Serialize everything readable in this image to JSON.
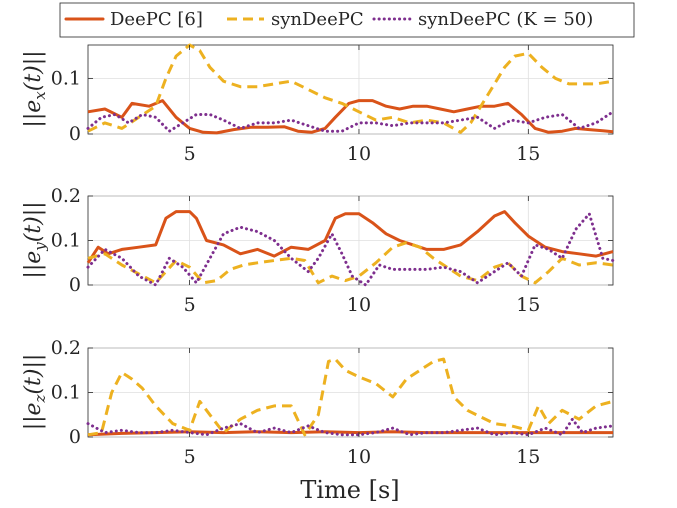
{
  "colors": {
    "deepc": "#D95319",
    "syndeepc": "#EDB120",
    "syndeepc_k50": "#7E2F8E"
  },
  "chart_data": [
    {
      "type": "line",
      "ylabel": "||e_x(t)||",
      "ylabel_parts": [
        "||e",
        "x",
        "(t)||"
      ],
      "xlim": [
        2,
        17.5
      ],
      "ylim": [
        0,
        0.16
      ],
      "xticks": [
        5,
        10,
        15
      ],
      "yticks": [
        0,
        0.1
      ],
      "ytick_labels": [
        "0",
        "0.1"
      ],
      "xtick_labels": [
        "5",
        "10",
        "15"
      ],
      "grid": true,
      "series": [
        {
          "name": "DeePC [6]",
          "color": "#D95319",
          "style": "solid",
          "x": [
            2.0,
            2.5,
            3.0,
            3.3,
            3.8,
            4.2,
            4.6,
            5.0,
            5.4,
            5.8,
            6.3,
            6.8,
            7.3,
            7.8,
            8.2,
            8.6,
            9.0,
            9.3,
            9.7,
            10.0,
            10.4,
            10.8,
            11.2,
            11.6,
            12.0,
            12.4,
            12.8,
            13.2,
            13.6,
            14.0,
            14.4,
            14.8,
            15.2,
            15.6,
            16.0,
            16.4,
            16.8,
            17.2,
            17.5
          ],
          "y": [
            0.04,
            0.045,
            0.03,
            0.055,
            0.05,
            0.06,
            0.03,
            0.01,
            0.003,
            0.002,
            0.008,
            0.012,
            0.012,
            0.013,
            0.005,
            0.003,
            0.01,
            0.03,
            0.055,
            0.06,
            0.06,
            0.05,
            0.045,
            0.05,
            0.05,
            0.045,
            0.04,
            0.045,
            0.05,
            0.05,
            0.055,
            0.035,
            0.01,
            0.003,
            0.005,
            0.01,
            0.008,
            0.006,
            0.004
          ]
        },
        {
          "name": "synDeePC",
          "color": "#EDB120",
          "style": "dash",
          "x": [
            2.0,
            2.5,
            3.0,
            3.5,
            4.0,
            4.3,
            4.6,
            5.0,
            5.3,
            5.6,
            6.0,
            6.5,
            7.0,
            7.5,
            8.0,
            8.5,
            9.0,
            9.5,
            10.0,
            10.5,
            11.0,
            11.5,
            12.0,
            12.5,
            13.0,
            13.3,
            13.7,
            14.0,
            14.3,
            14.6,
            15.0,
            15.4,
            15.8,
            16.2,
            16.6,
            17.0,
            17.5
          ],
          "y": [
            0.005,
            0.02,
            0.01,
            0.03,
            0.05,
            0.1,
            0.14,
            0.16,
            0.15,
            0.12,
            0.095,
            0.085,
            0.085,
            0.09,
            0.095,
            0.08,
            0.065,
            0.055,
            0.04,
            0.025,
            0.03,
            0.02,
            0.025,
            0.02,
            0.003,
            0.02,
            0.06,
            0.09,
            0.12,
            0.14,
            0.145,
            0.12,
            0.1,
            0.09,
            0.09,
            0.09,
            0.095
          ]
        },
        {
          "name": "synDeePC (K = 50)",
          "color": "#7E2F8E",
          "style": "dot",
          "x": [
            2.0,
            2.4,
            2.8,
            3.2,
            3.6,
            4.0,
            4.4,
            4.8,
            5.2,
            5.6,
            6.0,
            6.5,
            7.0,
            7.5,
            8.0,
            8.5,
            9.0,
            9.5,
            10.0,
            10.5,
            11.0,
            11.5,
            12.0,
            12.5,
            13.0,
            13.5,
            14.0,
            14.5,
            15.0,
            15.5,
            16.0,
            16.5,
            17.0,
            17.5
          ],
          "y": [
            0.01,
            0.03,
            0.035,
            0.02,
            0.035,
            0.03,
            0.005,
            0.02,
            0.035,
            0.035,
            0.025,
            0.01,
            0.02,
            0.02,
            0.025,
            0.015,
            0.005,
            0.005,
            0.02,
            0.02,
            0.015,
            0.02,
            0.02,
            0.02,
            0.025,
            0.03,
            0.01,
            0.025,
            0.02,
            0.03,
            0.035,
            0.01,
            0.02,
            0.04
          ]
        }
      ]
    },
    {
      "type": "line",
      "ylabel": "||e_y(t)||",
      "ylabel_parts": [
        "||e",
        "y",
        "(t)||"
      ],
      "xlim": [
        2,
        17.5
      ],
      "ylim": [
        0,
        0.2
      ],
      "xticks": [
        5,
        10,
        15
      ],
      "yticks": [
        0,
        0.1,
        0.2
      ],
      "ytick_labels": [
        "0",
        "0.1",
        "0.2"
      ],
      "xtick_labels": [
        "5",
        "10",
        "15"
      ],
      "grid": true,
      "series": [
        {
          "name": "DeePC [6]",
          "color": "#D95319",
          "style": "solid",
          "x": [
            2.0,
            2.3,
            2.6,
            3.0,
            3.5,
            4.0,
            4.3,
            4.6,
            5.0,
            5.2,
            5.5,
            6.0,
            6.5,
            7.0,
            7.5,
            8.0,
            8.5,
            9.0,
            9.3,
            9.6,
            10.0,
            10.4,
            10.8,
            11.2,
            11.6,
            12.0,
            12.5,
            13.0,
            13.5,
            14.0,
            14.3,
            14.6,
            15.0,
            15.5,
            16.0,
            16.5,
            17.0,
            17.5
          ],
          "y": [
            0.05,
            0.085,
            0.07,
            0.08,
            0.085,
            0.09,
            0.15,
            0.165,
            0.165,
            0.15,
            0.1,
            0.09,
            0.07,
            0.08,
            0.065,
            0.085,
            0.08,
            0.1,
            0.15,
            0.16,
            0.16,
            0.14,
            0.115,
            0.1,
            0.09,
            0.08,
            0.08,
            0.09,
            0.12,
            0.155,
            0.165,
            0.14,
            0.11,
            0.085,
            0.075,
            0.07,
            0.065,
            0.075
          ]
        },
        {
          "name": "synDeePC",
          "color": "#EDB120",
          "style": "dash",
          "x": [
            2.0,
            2.5,
            3.0,
            3.5,
            4.0,
            4.3,
            4.6,
            5.0,
            5.4,
            5.8,
            6.2,
            6.6,
            7.0,
            7.5,
            8.0,
            8.4,
            8.8,
            9.2,
            9.6,
            10.0,
            10.5,
            11.0,
            11.4,
            11.8,
            12.2,
            12.6,
            13.0,
            13.5,
            14.0,
            14.4,
            14.8,
            15.2,
            15.6,
            16.0,
            16.5,
            17.0,
            17.5
          ],
          "y": [
            0.06,
            0.07,
            0.045,
            0.025,
            0.005,
            0.03,
            0.055,
            0.04,
            0.005,
            0.01,
            0.035,
            0.045,
            0.05,
            0.055,
            0.06,
            0.055,
            0.005,
            0.02,
            0.01,
            0.02,
            0.05,
            0.085,
            0.095,
            0.085,
            0.06,
            0.04,
            0.02,
            0.01,
            0.04,
            0.05,
            0.02,
            0.005,
            0.03,
            0.06,
            0.045,
            0.05,
            0.045
          ]
        },
        {
          "name": "synDeePC (K = 50)",
          "color": "#7E2F8E",
          "style": "dot",
          "x": [
            2.0,
            2.5,
            3.0,
            3.5,
            4.0,
            4.4,
            4.8,
            5.2,
            5.6,
            6.0,
            6.5,
            7.0,
            7.5,
            8.0,
            8.5,
            8.8,
            9.2,
            9.5,
            9.8,
            10.2,
            10.6,
            11.0,
            11.5,
            12.0,
            12.5,
            13.0,
            13.5,
            14.0,
            14.4,
            14.8,
            15.2,
            15.6,
            16.0,
            16.4,
            16.8,
            17.2,
            17.5
          ],
          "y": [
            0.04,
            0.08,
            0.06,
            0.02,
            0.0,
            0.06,
            0.04,
            0.005,
            0.06,
            0.115,
            0.13,
            0.12,
            0.1,
            0.06,
            0.03,
            0.06,
            0.115,
            0.07,
            0.02,
            0.0,
            0.045,
            0.035,
            0.035,
            0.035,
            0.04,
            0.03,
            0.005,
            0.03,
            0.05,
            0.02,
            0.09,
            0.08,
            0.06,
            0.125,
            0.16,
            0.06,
            0.055
          ]
        }
      ]
    },
    {
      "type": "line",
      "ylabel": "||e_z(t)||",
      "ylabel_parts": [
        "||e",
        "z",
        "(t)||"
      ],
      "xlabel": "Time [s]",
      "xlim": [
        2,
        17.5
      ],
      "ylim": [
        0,
        0.2
      ],
      "xticks": [
        5,
        10,
        15
      ],
      "yticks": [
        0,
        0.1,
        0.2
      ],
      "ytick_labels": [
        "0",
        "0.1",
        "0.2"
      ],
      "xtick_labels": [
        "5",
        "10",
        "15"
      ],
      "grid": true,
      "series": [
        {
          "name": "DeePC [6]",
          "color": "#D95319",
          "style": "solid",
          "x": [
            2.0,
            3.0,
            4.0,
            5.0,
            6.0,
            7.0,
            8.0,
            9.0,
            10.0,
            11.0,
            12.0,
            13.0,
            14.0,
            15.0,
            16.0,
            17.0,
            17.5
          ],
          "y": [
            0.005,
            0.008,
            0.01,
            0.012,
            0.01,
            0.012,
            0.01,
            0.012,
            0.01,
            0.012,
            0.01,
            0.01,
            0.01,
            0.01,
            0.01,
            0.01,
            0.01
          ]
        },
        {
          "name": "synDeePC",
          "color": "#EDB120",
          "style": "dash",
          "x": [
            2.0,
            2.4,
            2.7,
            3.0,
            3.3,
            3.6,
            4.0,
            4.5,
            5.0,
            5.3,
            5.6,
            6.0,
            6.5,
            7.0,
            7.5,
            8.0,
            8.4,
            8.8,
            9.1,
            9.3,
            9.6,
            10.0,
            10.5,
            11.0,
            11.4,
            11.8,
            12.2,
            12.5,
            12.8,
            13.2,
            13.6,
            14.0,
            14.5,
            15.0,
            15.3,
            15.6,
            16.0,
            16.5,
            17.0,
            17.5
          ],
          "y": [
            0.005,
            0.01,
            0.1,
            0.145,
            0.13,
            0.11,
            0.07,
            0.03,
            0.015,
            0.08,
            0.05,
            0.01,
            0.04,
            0.06,
            0.07,
            0.07,
            0.005,
            0.05,
            0.17,
            0.175,
            0.15,
            0.135,
            0.12,
            0.09,
            0.13,
            0.15,
            0.17,
            0.175,
            0.09,
            0.06,
            0.045,
            0.03,
            0.025,
            0.015,
            0.07,
            0.03,
            0.06,
            0.04,
            0.07,
            0.08
          ]
        },
        {
          "name": "synDeePC (K = 50)",
          "color": "#7E2F8E",
          "style": "dot",
          "x": [
            2.0,
            2.5,
            3.0,
            3.5,
            4.0,
            4.5,
            5.0,
            5.5,
            6.0,
            6.5,
            7.0,
            7.5,
            8.0,
            8.5,
            9.0,
            9.5,
            10.0,
            10.5,
            11.0,
            11.5,
            12.0,
            12.5,
            13.0,
            13.5,
            14.0,
            14.5,
            15.0,
            15.5,
            16.0,
            16.3,
            16.6,
            17.0,
            17.5
          ],
          "y": [
            0.03,
            0.01,
            0.015,
            0.01,
            0.01,
            0.015,
            0.01,
            0.005,
            0.02,
            0.03,
            0.01,
            0.02,
            0.01,
            0.025,
            0.01,
            0.005,
            0.005,
            0.01,
            0.02,
            0.005,
            0.01,
            0.01,
            0.015,
            0.02,
            0.005,
            0.01,
            0.005,
            0.02,
            0.005,
            0.04,
            0.01,
            0.02,
            0.025
          ]
        }
      ]
    }
  ],
  "legend": {
    "placement": "top",
    "entries": [
      {
        "label": "DeePC [6]",
        "color": "#D95319",
        "style": "solid"
      },
      {
        "label": "synDeePC",
        "color": "#EDB120",
        "style": "dash"
      },
      {
        "label": "synDeePC (K = 50)",
        "color": "#7E2F8E",
        "style": "dot"
      }
    ]
  }
}
